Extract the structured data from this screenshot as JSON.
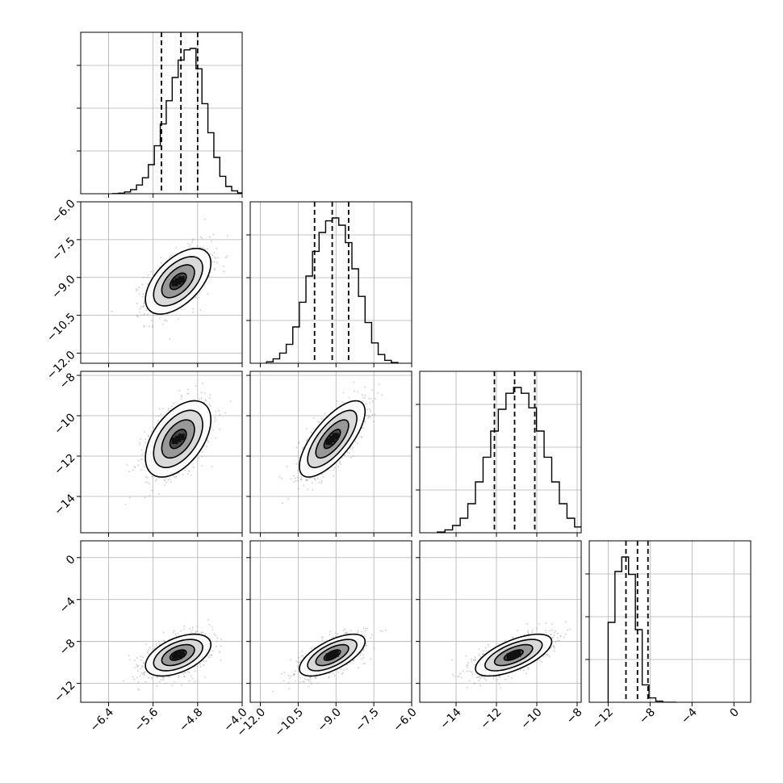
{
  "chart_data": {
    "type": "corner",
    "title": "",
    "parameters": [
      {
        "range": [
          -6.9,
          -4.0
        ],
        "ticks": [
          -6.4,
          -5.6,
          -4.8,
          -4.0
        ],
        "tick_labels": [
          "−6.4",
          "−5.6",
          "−4.8",
          "−4.0"
        ],
        "mean": -5.15,
        "sigma": 0.28,
        "quantiles": [
          -5.45,
          -5.1,
          -4.8
        ]
      },
      {
        "range": [
          -12.4,
          -6.0
        ],
        "ticks": [
          -12.0,
          -10.5,
          -9.0,
          -7.5,
          -6.0
        ],
        "tick_labels": [
          "−12.0",
          "−10.5",
          "−9.0",
          "−7.5",
          "−6.0"
        ],
        "mean": -9.15,
        "sigma": 0.62,
        "quantiles": [
          -9.85,
          -9.15,
          -8.5
        ]
      },
      {
        "range": [
          -15.8,
          -7.8
        ],
        "ticks": [
          -14,
          -12,
          -10,
          -8
        ],
        "tick_labels": [
          "−14",
          "−12",
          "−10",
          "−8"
        ],
        "mean": -11.15,
        "sigma": 0.9,
        "quantiles": [
          -12.1,
          -11.1,
          -10.1
        ]
      },
      {
        "range": [
          -13.8,
          1.6
        ],
        "ticks": [
          -12,
          -8,
          -4,
          0
        ],
        "tick_labels": [
          "−12",
          "−8",
          "−4",
          "0"
        ],
        "mean": -9.3,
        "sigma": 0.95,
        "quantiles": [
          -10.3,
          -9.2,
          -8.2
        ]
      }
    ],
    "diagonal_hist_bins": {
      "p0": [
        0.001,
        0.004,
        0.012,
        0.028,
        0.06,
        0.11,
        0.2,
        0.33,
        0.48,
        0.64,
        0.8,
        0.92,
        0.99,
        1.0,
        0.86,
        0.62,
        0.42,
        0.25,
        0.12,
        0.05,
        0.02,
        0.006
      ],
      "p1": [
        0.01,
        0.03,
        0.07,
        0.13,
        0.25,
        0.42,
        0.6,
        0.77,
        0.9,
        0.98,
        1.0,
        0.95,
        0.83,
        0.65,
        0.46,
        0.28,
        0.14,
        0.06,
        0.02,
        0.005
      ],
      "p2": [
        0.005,
        0.02,
        0.05,
        0.1,
        0.2,
        0.35,
        0.52,
        0.7,
        0.85,
        0.96,
        1.0,
        0.96,
        0.86,
        0.7,
        0.52,
        0.35,
        0.2,
        0.1,
        0.04,
        0.015
      ],
      "p3": [
        0.55,
        0.9,
        1.0,
        0.88,
        0.5,
        0.12,
        0.03,
        0.008,
        0.0,
        0.0
      ]
    },
    "correlations": {
      "1-0": 0.55,
      "2-0": 0.5,
      "2-1": 0.72,
      "3-0": 0.5,
      "3-1": 0.65,
      "3-2": 0.65
    },
    "contour_levels_sigma": [
      0.5,
      1.0,
      1.5,
      2.0
    ],
    "colors": {
      "ink": "#000000",
      "grid": "#b0b0b0",
      "scatter": "#9a9a9a"
    },
    "grid": true,
    "tick_rotation_deg": 45
  }
}
